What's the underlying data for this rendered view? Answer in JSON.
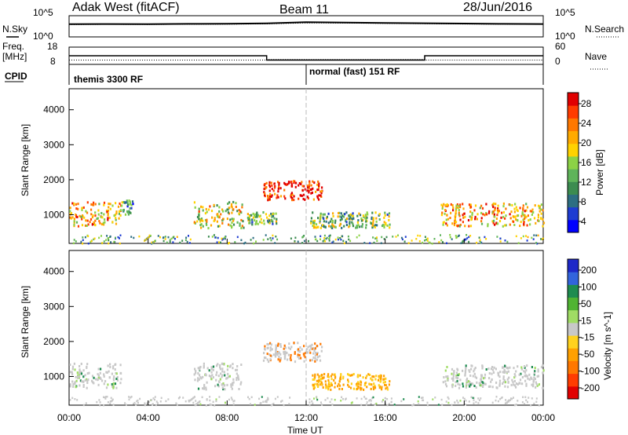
{
  "header": {
    "left": "Adak West (fitACF)",
    "center": "Beam 11",
    "right": "28/Jun/2016"
  },
  "panels": {
    "nsky": {
      "label": "N.Sky",
      "right_label": "N.Search",
      "left_ticks": [
        "10^5",
        "10^0"
      ],
      "right_ticks": [
        "10^5",
        "10^0"
      ]
    },
    "freq": {
      "label_line1": "Freq.",
      "label_line2": "[MHz]",
      "right_label": "Nave",
      "left_ticks": [
        "18",
        "8"
      ],
      "right_ticks": [
        "60",
        "0"
      ]
    },
    "cpid": {
      "label": "CPID",
      "modes": [
        "themis 3300 RF",
        "normal (fast) 151 RF"
      ]
    }
  },
  "colors": {
    "power": [
      "#0000ff",
      "#1e3cd2",
      "#2d6e82",
      "#3c8c50",
      "#5fb45a",
      "#8cd246",
      "#ffd200",
      "#ffaa00",
      "#ff7800",
      "#ff3c00",
      "#e10000"
    ],
    "velocity": [
      "#1e28c8",
      "#3264dc",
      "#1e8c50",
      "#50b432",
      "#a0dc64",
      "#c8c8c8",
      "#ffd21e",
      "#ffa000",
      "#ff7800",
      "#ff3c00",
      "#e10000"
    ]
  },
  "chart_data": [
    {
      "type": "line",
      "title": "N.Sky / N.Search",
      "x": [
        0,
        2,
        4,
        6,
        8,
        10,
        12,
        14,
        16,
        18,
        20,
        22,
        24
      ],
      "series": [
        {
          "name": "N.Sky",
          "values": [
            1000,
            1100,
            1050,
            1200,
            1300,
            1600,
            3000,
            2500,
            2000,
            1700,
            1400,
            1200,
            1100
          ]
        },
        {
          "name": "N.Search",
          "values": [
            800,
            900,
            850,
            950,
            1000,
            1200,
            2000,
            1800,
            1500,
            1300,
            1100,
            1000,
            900
          ]
        }
      ],
      "yscale": "log",
      "ylim": [
        1,
        100000
      ]
    },
    {
      "type": "line",
      "x": [
        0,
        10,
        10,
        18,
        18,
        24
      ],
      "series": [
        {
          "name": "Freq.",
          "values": [
            13,
            13,
            10.5,
            10.5,
            13,
            13
          ]
        },
        {
          "name": "Nave",
          "values": [
            15,
            15,
            17,
            17,
            15,
            15
          ]
        }
      ],
      "ylim_left": [
        8,
        18
      ],
      "ylim_right": [
        0,
        60
      ]
    },
    {
      "type": "heatmap",
      "ylabel": "Slant Range [km]",
      "colorbar_label": "Power [dB]",
      "colorbar_ticks": [
        "28",
        "24",
        "20",
        "16",
        "12",
        "8",
        "4"
      ],
      "ylim": [
        180,
        4600
      ],
      "yticks": [
        "1000",
        "2000",
        "3000",
        "4000"
      ],
      "xlim": [
        0,
        24
      ],
      "echo_regions": [
        {
          "t0": 0.0,
          "t1": 2.6,
          "r0": 700,
          "r1": 1400,
          "level": 20
        },
        {
          "t0": 6.3,
          "t1": 8.8,
          "r0": 650,
          "r1": 1400,
          "level": 16
        },
        {
          "t0": 9.8,
          "t1": 12.8,
          "r0": 1450,
          "r1": 2000,
          "level": 28
        },
        {
          "t0": 12.2,
          "t1": 16.2,
          "r0": 650,
          "r1": 1100,
          "level": 12
        },
        {
          "t0": 18.8,
          "t1": 24.0,
          "r0": 700,
          "r1": 1350,
          "level": 20
        },
        {
          "t0": 9.0,
          "t1": 10.5,
          "r0": 750,
          "r1": 1100,
          "level": 12
        },
        {
          "t0": 2.6,
          "t1": 3.3,
          "r0": 1000,
          "r1": 1450,
          "level": 8
        }
      ]
    },
    {
      "type": "heatmap",
      "ylabel": "Slant Range [km]",
      "colorbar_label": "Velocity [m s^-1]",
      "colorbar_ticks": [
        "200",
        "100",
        "50",
        "15",
        "-15",
        "-50",
        "-100",
        "-200"
      ],
      "ylim": [
        180,
        4600
      ],
      "yticks": [
        "1000",
        "2000",
        "3000",
        "4000"
      ],
      "xlim": [
        0,
        24
      ],
      "xticks": [
        "00:00",
        "04:00",
        "08:00",
        "12:00",
        "16:00",
        "20:00",
        "00:00"
      ],
      "xlabel": "Time UT",
      "echo_regions": [
        {
          "t0": 0.0,
          "t1": 2.6,
          "r0": 700,
          "r1": 1400,
          "velocity": 0
        },
        {
          "t0": 6.3,
          "t1": 8.8,
          "r0": 650,
          "r1": 1400,
          "velocity": 0
        },
        {
          "t0": 9.8,
          "t1": 12.8,
          "r0": 1450,
          "r1": 2000,
          "velocity": -10
        },
        {
          "t0": 12.2,
          "t1": 16.2,
          "r0": 650,
          "r1": 1100,
          "velocity": -60
        },
        {
          "t0": 18.8,
          "t1": 24.0,
          "r0": 700,
          "r1": 1350,
          "velocity": 0
        }
      ]
    }
  ]
}
